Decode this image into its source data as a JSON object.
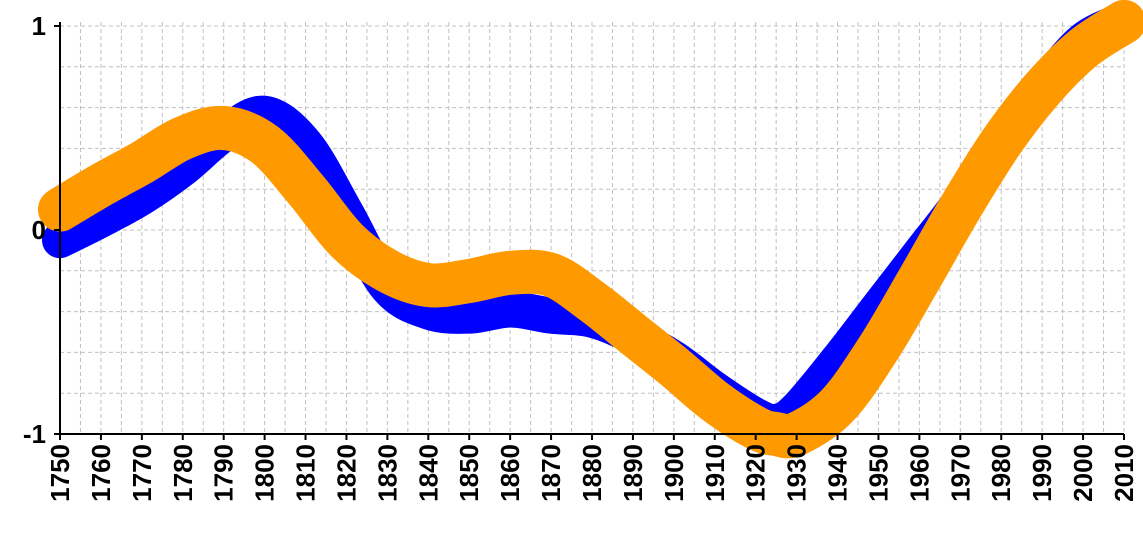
{
  "chart_data": {
    "type": "line",
    "x": [
      1750,
      1760,
      1770,
      1780,
      1790,
      1800,
      1810,
      1820,
      1830,
      1840,
      1850,
      1860,
      1870,
      1880,
      1890,
      1900,
      1910,
      1920,
      1925,
      1930,
      1940,
      1950,
      1960,
      1970,
      1980,
      1990,
      2000,
      2010
    ],
    "series": [
      {
        "color": "#0000ff",
        "style": "thick band with varying width",
        "values": [
          -0.05,
          0.05,
          0.16,
          0.3,
          0.47,
          0.57,
          0.42,
          0.08,
          -0.28,
          -0.4,
          -0.42,
          -0.39,
          -0.42,
          -0.44,
          -0.52,
          -0.63,
          -0.78,
          -0.91,
          -0.94,
          -0.88,
          -0.64,
          -0.38,
          -0.12,
          0.14,
          0.44,
          0.7,
          0.93,
          1.03
        ]
      },
      {
        "color": "#ff9900",
        "style": "thick line",
        "values": [
          0.1,
          0.22,
          0.33,
          0.45,
          0.5,
          0.42,
          0.2,
          -0.05,
          -0.2,
          -0.27,
          -0.25,
          -0.21,
          -0.22,
          -0.35,
          -0.51,
          -0.67,
          -0.84,
          -0.97,
          -1.0,
          -1.0,
          -0.86,
          -0.58,
          -0.24,
          0.11,
          0.43,
          0.69,
          0.89,
          1.02
        ]
      }
    ],
    "y_ticks": [
      "1",
      "0",
      "-1"
    ],
    "x_ticks": [
      "1750",
      "1760",
      "1770",
      "1780",
      "1790",
      "1800",
      "1810",
      "1820",
      "1830",
      "1840",
      "1850",
      "1860",
      "1870",
      "1880",
      "1890",
      "1900",
      "1910",
      "1920",
      "1930",
      "1940",
      "1950",
      "1960",
      "1970",
      "1980",
      "1990",
      "2000",
      "2010"
    ],
    "xlim": [
      1750,
      2010
    ],
    "ylim": [
      -1,
      1
    ],
    "grid": true,
    "legend": "none",
    "colors": {
      "band": "#0000ff",
      "line": "#ff9900",
      "grid": "#c0c0c0",
      "axis": "#000000"
    }
  }
}
